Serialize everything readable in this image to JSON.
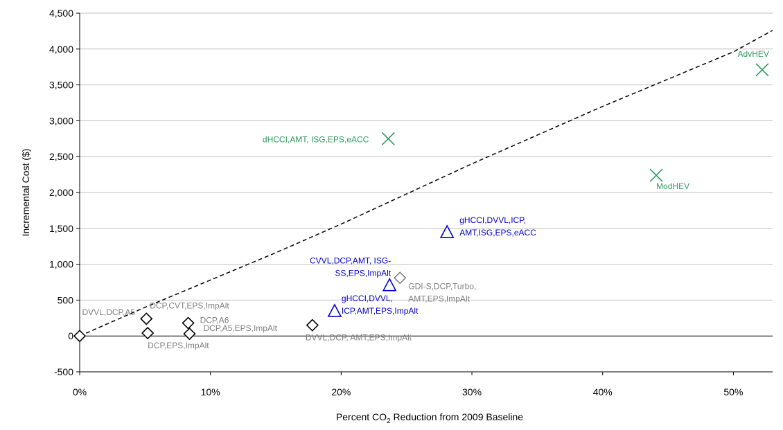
{
  "chart_data": {
    "type": "scatter",
    "title": "",
    "xlabel_parts": [
      "Percent CO",
      "2",
      " Reduction from 2009 Baseline"
    ],
    "ylabel": "Incremental Cost ($)",
    "xlim": [
      0,
      0.53
    ],
    "ylim": [
      -500,
      4500
    ],
    "x_ticks": [
      0,
      0.1,
      0.2,
      0.3,
      0.4,
      0.5
    ],
    "x_tick_labels": [
      "0%",
      "10%",
      "20%",
      "30%",
      "40%",
      "50%"
    ],
    "y_ticks": [
      -500,
      0,
      500,
      1000,
      1500,
      2000,
      2500,
      3000,
      3500,
      4000,
      4500
    ],
    "y_tick_labels": [
      "-500",
      "0",
      "500",
      "1,000",
      "1,500",
      "2,000",
      "2,500",
      "3,000",
      "3,500",
      "4,000",
      "4,500"
    ],
    "grid": "horizontal",
    "colors": {
      "black": "#000000",
      "gray": "#7f7f7f",
      "blue": "#0000cc",
      "green": "#2e9b5f",
      "grid": "#c0c0c0"
    },
    "points": [
      {
        "x": 0.0,
        "y": 0,
        "marker": "diamond",
        "color": "black",
        "label_lines": [
          "DVVL,DCP,A5"
        ],
        "label_color": "gray",
        "label_anchor": "end",
        "label_dx": 80,
        "label_dy": -30
      },
      {
        "x": 0.051,
        "y": 240,
        "marker": "diamond",
        "color": "black",
        "label_lines": [
          "DCP,CVT,EPS,ImpAlt"
        ],
        "label_color": "gray",
        "label_anchor": "start",
        "label_dx": 5,
        "label_dy": -15
      },
      {
        "x": 0.052,
        "y": 40,
        "marker": "diamond",
        "color": "black",
        "label_lines": [
          "DCP,EPS,ImpAlt"
        ],
        "label_color": "gray",
        "label_anchor": "start",
        "label_dx": 0,
        "label_dy": 22
      },
      {
        "x": 0.083,
        "y": 180,
        "marker": "diamond",
        "color": "black",
        "label_lines": [
          "DCP,A6"
        ],
        "label_color": "gray",
        "label_anchor": "start",
        "label_dx": 17,
        "label_dy": 0
      },
      {
        "x": 0.084,
        "y": 30,
        "marker": "diamond",
        "color": "black",
        "label_lines": [
          "DCP,A5,EPS,ImpAlt"
        ],
        "label_color": "gray",
        "label_anchor": "start",
        "label_dx": 20,
        "label_dy": -4
      },
      {
        "x": 0.178,
        "y": 150,
        "marker": "diamond",
        "color": "black",
        "label_lines": [
          "DVVL,DCP, AMT,EPS,ImpAlt"
        ],
        "label_color": "gray",
        "label_anchor": "start",
        "label_dx": -10,
        "label_dy": 22
      },
      {
        "x": 0.245,
        "y": 810,
        "marker": "diamond",
        "color": "gray",
        "label_lines": [
          "GDI-S,DCP,Turbo,",
          "AMT,EPS,ImpAlt"
        ],
        "label_color": "gray",
        "label_anchor": "start",
        "label_dx": 12,
        "label_dy": 16
      },
      {
        "x": 0.195,
        "y": 340,
        "marker": "triangle",
        "color": "blue",
        "label_lines": [
          "gHCCI,DVVL,",
          "ICP,AMT,EPS,ImpAlt"
        ],
        "label_color": "blue",
        "label_anchor": "start",
        "label_dx": 10,
        "label_dy": -15
      },
      {
        "x": 0.237,
        "y": 700,
        "marker": "triangle",
        "color": "blue",
        "label_lines": [
          "CVVL,DCP,AMT, ISG-",
          "SS,EPS,ImpAlt"
        ],
        "label_color": "blue",
        "label_anchor": "end",
        "label_dx": 2,
        "label_dy": -32
      },
      {
        "x": 0.281,
        "y": 1440,
        "marker": "triangle",
        "color": "blue",
        "label_lines": [
          "gHCCI,DVVL,ICP,",
          "AMT,ISG,EPS,eACC"
        ],
        "label_color": "blue",
        "label_anchor": "start",
        "label_dx": 18,
        "label_dy": -14
      },
      {
        "x": 0.236,
        "y": 2750,
        "marker": "x",
        "color": "green",
        "label_lines": [
          "dHCCI,AMT, ISG,EPS,eACC"
        ],
        "label_color": "green",
        "label_anchor": "end",
        "label_dx": -28,
        "label_dy": 5
      },
      {
        "x": 0.441,
        "y": 2240,
        "marker": "x",
        "color": "green",
        "label_lines": [
          "ModHEV"
        ],
        "label_color": "green",
        "label_anchor": "start",
        "label_dx": 0,
        "label_dy": 20
      },
      {
        "x": 0.522,
        "y": 3710,
        "marker": "x",
        "color": "green",
        "label_lines": [
          "AdvHEV"
        ],
        "label_color": "green",
        "label_anchor": "end",
        "label_dx": 10,
        "label_dy": -19
      }
    ],
    "frontier": {
      "style": "dashed",
      "color": "black",
      "x": [
        0,
        0.05,
        0.1,
        0.15,
        0.2,
        0.25,
        0.3,
        0.35,
        0.4,
        0.45,
        0.5,
        0.53
      ],
      "y": [
        0,
        400,
        780,
        1160,
        1560,
        1980,
        2400,
        2800,
        3200,
        3580,
        3960,
        4260
      ]
    }
  }
}
